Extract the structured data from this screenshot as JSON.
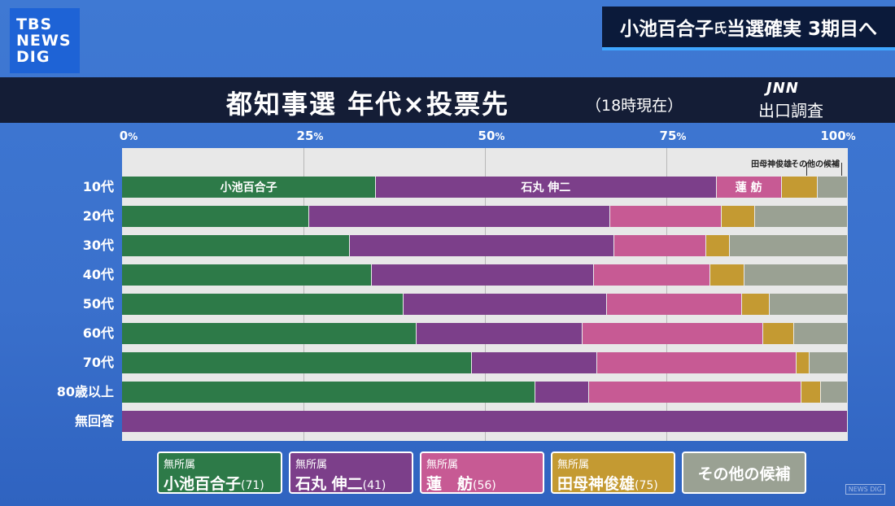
{
  "logo": {
    "line1": "TBS",
    "line2": "NEWS",
    "line3": "DIG"
  },
  "headline": {
    "main": "小池百合子",
    "honorific": "氏",
    "rest": " 当選確実 3期目へ"
  },
  "banner": {
    "title": "都知事選  年代×投票先",
    "subtitle": "（18時現在）",
    "network": "JNN",
    "label": "出口調査"
  },
  "colors": {
    "koike": "#2d7a48",
    "ishimaru": "#7c3f8a",
    "renho": "#c75a94",
    "tamogami": "#c49a32",
    "other": "#9aa193"
  },
  "chart_data": {
    "type": "bar",
    "orientation": "horizontal",
    "stacked": true,
    "xlim": [
      0,
      100
    ],
    "ticks": [
      {
        "value": 0,
        "label": "0",
        "unit": "%"
      },
      {
        "value": 25,
        "label": "25",
        "unit": "%"
      },
      {
        "value": 50,
        "label": "50",
        "unit": "%"
      },
      {
        "value": 75,
        "label": "75",
        "unit": "%"
      },
      {
        "value": 100,
        "label": "100",
        "unit": "%"
      }
    ],
    "categories": [
      "10代",
      "20代",
      "30代",
      "40代",
      "50代",
      "60代",
      "70代",
      "80歳以上",
      "無回答"
    ],
    "series": [
      {
        "key": "koike",
        "name": "小池百合子",
        "inbar": "小池百合子",
        "values": [
          35,
          25.8,
          31.4,
          34.4,
          38.8,
          40.6,
          48.2,
          56.9,
          0
        ]
      },
      {
        "key": "ishimaru",
        "name": "石丸 伸二",
        "inbar": "石丸 伸二",
        "values": [
          46.9,
          41.5,
          36.4,
          30.6,
          28.0,
          22.9,
          17.3,
          7.4,
          100
        ]
      },
      {
        "key": "renho",
        "name": "蓮　舫",
        "inbar": "蓮 舫",
        "values": [
          9,
          15.3,
          12.7,
          16.1,
          18.6,
          24.8,
          27.4,
          29.3,
          0
        ]
      },
      {
        "key": "tamogami",
        "name": "田母神俊雄",
        "values": [
          5,
          4.6,
          3.3,
          4.7,
          3.8,
          4.3,
          1.8,
          2.7,
          0
        ]
      },
      {
        "key": "other",
        "name": "その他の候補",
        "values": [
          4.1,
          12.8,
          16.2,
          14.2,
          10.8,
          7.4,
          5.3,
          3.7,
          0
        ]
      }
    ],
    "annotations": {
      "tamogami": "田母神俊雄",
      "other": "その他の候補"
    }
  },
  "legend": [
    {
      "key": "koike",
      "party": "無所属",
      "name": "小池百合子",
      "age": "(71)"
    },
    {
      "key": "ishimaru",
      "party": "無所属",
      "name": "石丸 伸二",
      "age": "(41)"
    },
    {
      "key": "renho",
      "party": "無所属",
      "name": "蓮　舫",
      "age": "(56)"
    },
    {
      "key": "tamogami",
      "party": "無所属",
      "name": "田母神俊雄",
      "age": "(75)"
    },
    {
      "key": "other",
      "party": "",
      "name": "その他の候補",
      "age": ""
    }
  ],
  "watermark": "NEWS DIG"
}
